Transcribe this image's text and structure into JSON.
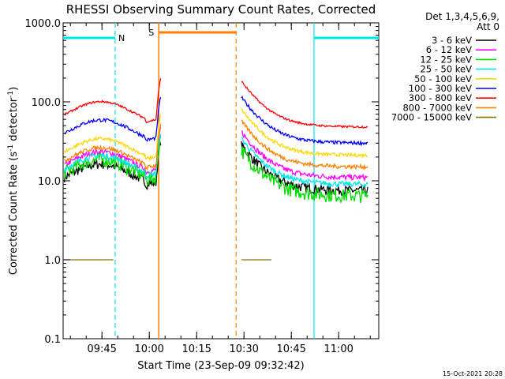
{
  "chart_data": {
    "type": "line",
    "title": "RHESSI Observing Summary Count Rates, Corrected",
    "xlabel": "Start Time (23-Sep-09 09:32:42)",
    "ylabel_main": "Corrected Count Rate (s",
    "ylabel_sup1": "-1",
    "ylabel_mid": " detector",
    "ylabel_sup2": "-1",
    "ylabel_end": ")",
    "y_scale": "log",
    "ylim": [
      0.1,
      1000
    ],
    "xlim_minutes": [
      0,
      100
    ],
    "x_ticks": [
      {
        "minute": 12.3,
        "label": "09:45"
      },
      {
        "minute": 27.3,
        "label": "10:00"
      },
      {
        "minute": 42.3,
        "label": "10:15"
      },
      {
        "minute": 57.3,
        "label": "10:30"
      },
      {
        "minute": 72.3,
        "label": "10:45"
      },
      {
        "minute": 87.3,
        "label": "11:00"
      }
    ],
    "y_ticks": [
      {
        "value": 1000,
        "label": "1000.0"
      },
      {
        "value": 100,
        "label": "100.0"
      },
      {
        "value": 10,
        "label": "10.0"
      },
      {
        "value": 1,
        "label": "1.0"
      },
      {
        "value": 0.1,
        "label": "0.1"
      }
    ],
    "legend_header_1": "Det 1,3,4,5,6,9,",
    "legend_header_2": "Att 0",
    "legend_position": "right",
    "night_label": "N",
    "saa_label": "S",
    "night_color": "#00e5ee",
    "saa_color": "#ff7f00",
    "night_intervals": [
      [
        0,
        16.5
      ],
      [
        79.5,
        100
      ]
    ],
    "saa_interval": [
      30.3,
      54.8
    ],
    "gap_interval": [
      31,
      56.5
    ],
    "series": [
      {
        "name": "3 - 6 keV",
        "color": "#000000",
        "pre": 10.5,
        "post": 7.5,
        "noise": 0.14
      },
      {
        "name": "6 - 12 keV",
        "color": "#ff00ff",
        "pre": 15,
        "post": 11,
        "noise": 0.08
      },
      {
        "name": "12 - 25 keV",
        "color": "#00dd00",
        "pre": 12,
        "post": 6.5,
        "noise": 0.2
      },
      {
        "name": "25 - 50 keV",
        "color": "#00e5ee",
        "pre": 13.5,
        "post": 9,
        "noise": 0.08
      },
      {
        "name": "50 - 100 keV",
        "color": "#ffd700",
        "pre": 22,
        "post": 21,
        "noise": 0.05
      },
      {
        "name": "100 - 300 keV",
        "color": "#0000ff",
        "pre": 38,
        "post": 30,
        "noise": 0.05
      },
      {
        "name": "300 - 800 keV",
        "color": "#ff0000",
        "pre": 65,
        "post": 48,
        "noise": 0.03
      },
      {
        "name": "800 - 7000 keV",
        "color": "#ff7f00",
        "pre": 17,
        "post": 15,
        "noise": 0.06
      },
      {
        "name": "7000 - 15000 keV",
        "color": "#8b7500",
        "pre": 1.0,
        "post": 1.0,
        "noise": 0
      }
    ],
    "footer_date": "15-Oct-2021 20:28"
  }
}
